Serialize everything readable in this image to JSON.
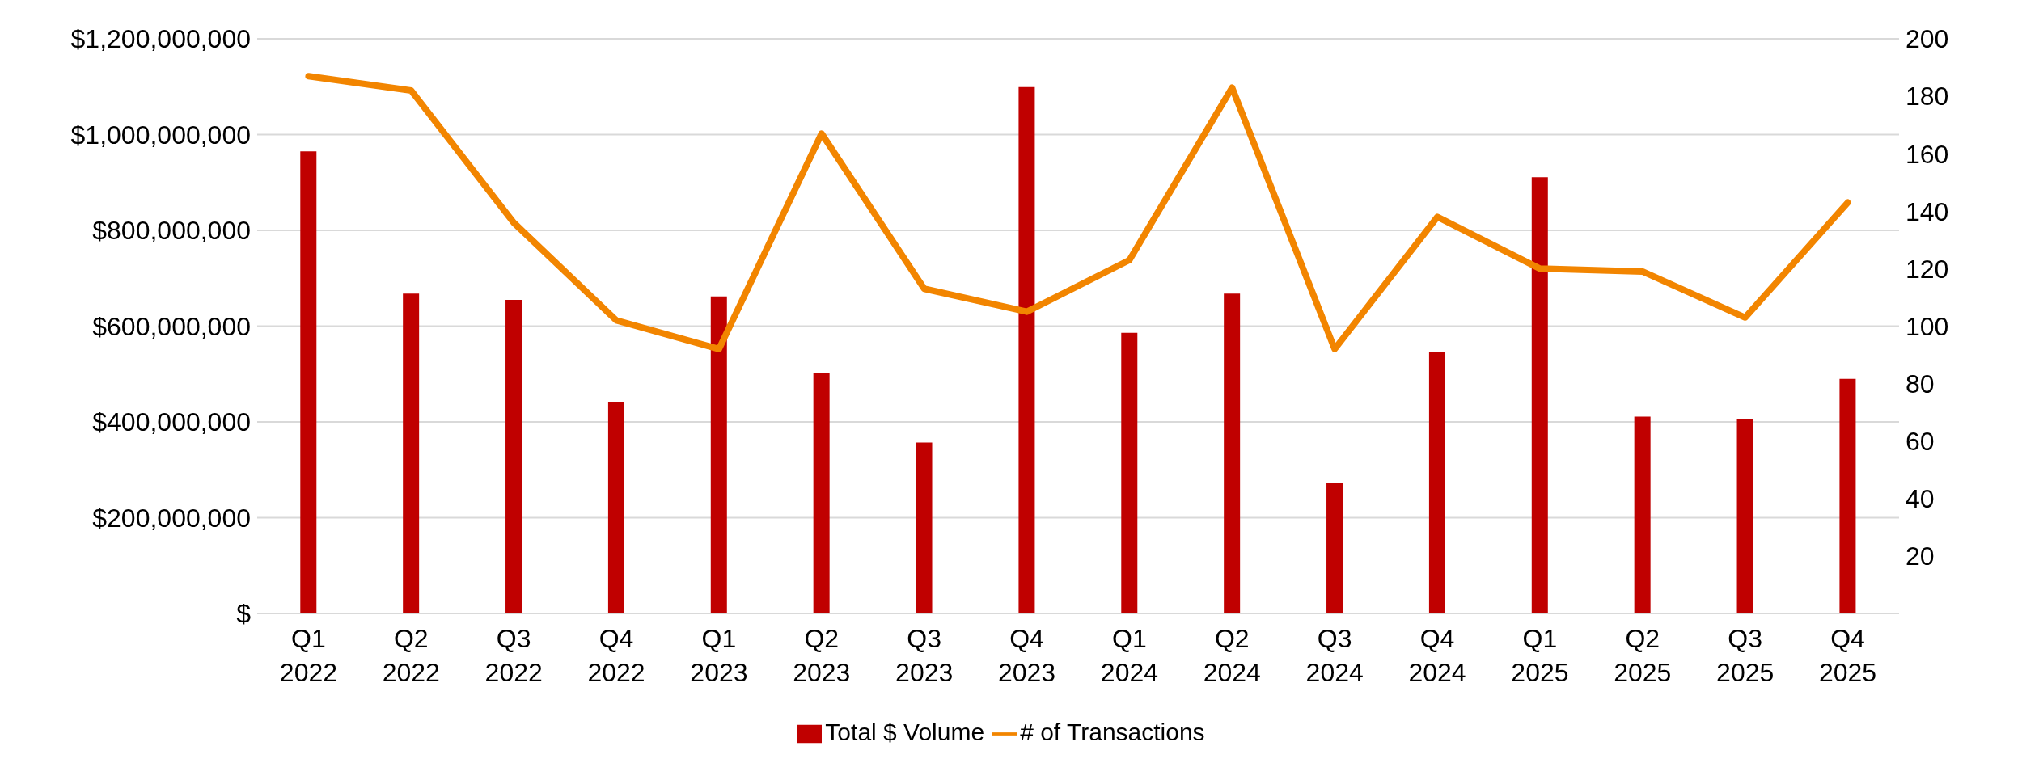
{
  "chart_data": {
    "type": "bar",
    "categories": [
      "Q1 2022",
      "Q2 2022",
      "Q3 2022",
      "Q4 2022",
      "Q1 2023",
      "Q2 2023",
      "Q3 2023",
      "Q4 2023",
      "Q1 2024",
      "Q2 2024",
      "Q3 2024",
      "Q4 2024",
      "Q1 2025",
      "Q2 2025",
      "Q3 2025",
      "Q4 2025"
    ],
    "series": [
      {
        "name": "Total $ Volume",
        "color": "#c00000",
        "values": [
          965000000,
          668000000,
          655000000,
          442000000,
          662000000,
          502000000,
          357000000,
          1099000000,
          586000000,
          668000000,
          273000000,
          545000000,
          911000000,
          411000000,
          406000000,
          490000000
        ]
      },
      {
        "name": "# of Transactions",
        "type": "line",
        "axis": "y2",
        "color": "#f28500",
        "values": [
          187,
          182,
          136,
          102,
          92,
          167,
          113,
          105,
          123,
          183,
          92,
          138,
          120,
          119,
          103,
          143
        ]
      }
    ],
    "ylim": [
      0,
      1200000000
    ],
    "yticks": [
      {
        "value": 0,
        "label": "$"
      },
      {
        "value": 200000000,
        "label": "$200,000,000"
      },
      {
        "value": 400000000,
        "label": "$400,000,000"
      },
      {
        "value": 600000000,
        "label": "$600,000,000"
      },
      {
        "value": 800000000,
        "label": "$800,000,000"
      },
      {
        "value": 1000000000,
        "label": "$1,000,000,000"
      },
      {
        "value": 1200000000,
        "label": "$1,200,000,000"
      }
    ],
    "y2lim": [
      0,
      200
    ],
    "y2ticks": [
      20,
      40,
      60,
      80,
      100,
      120,
      140,
      160,
      180,
      200
    ],
    "grid": "y",
    "legend": "bottom",
    "marker": "none",
    "line_style": "solid"
  }
}
